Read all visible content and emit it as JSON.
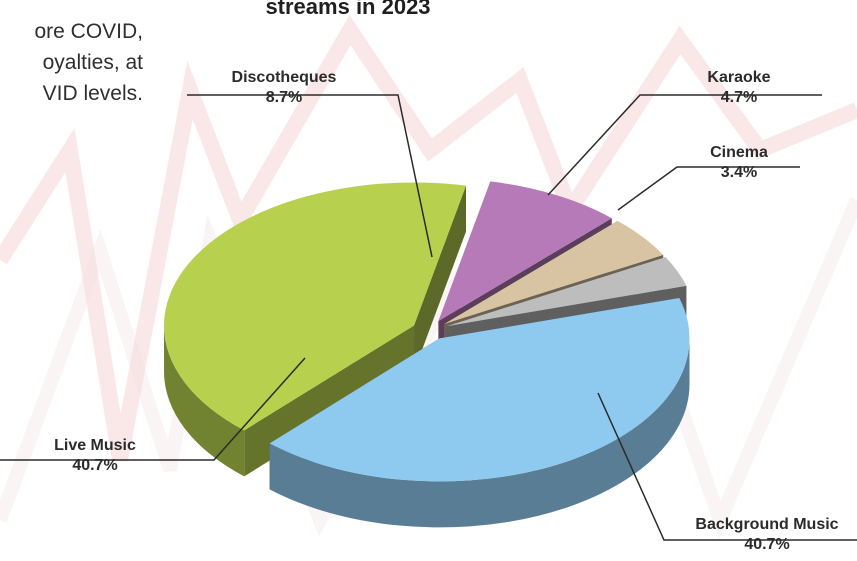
{
  "intro": {
    "lines": [
      "ore COVID,",
      "oyalties, at",
      "VID levels."
    ]
  },
  "chart_title": "streams in 2023",
  "chart_data": {
    "type": "pie",
    "title": "streams in 2023",
    "categories": [
      "Background Music",
      "Live Music",
      "Discotheques",
      "Karaoke",
      "Cinema"
    ],
    "values": [
      40.7,
      40.7,
      8.7,
      4.7,
      3.4
    ],
    "value_labels": [
      "40.7%",
      "40.7%",
      "8.7%",
      "4.7%",
      "3.4%"
    ],
    "colors": {
      "Background Music": "#8ecaf0",
      "Live Music": "#b7d14f",
      "Discotheques": "#b67ab8",
      "Karaoke": "#d8c4a3",
      "Cinema": "#bdbdbd"
    },
    "legend": "none",
    "grid": false
  },
  "slice_labels": [
    {
      "name": "Discotheques",
      "value": "8.7%"
    },
    {
      "name": "Karaoke",
      "value": "4.7%"
    },
    {
      "name": "Cinema",
      "value": "3.4%"
    },
    {
      "name": "Live Music",
      "value": "40.7%"
    },
    {
      "name": "Background Music",
      "value": "40.7%"
    }
  ]
}
